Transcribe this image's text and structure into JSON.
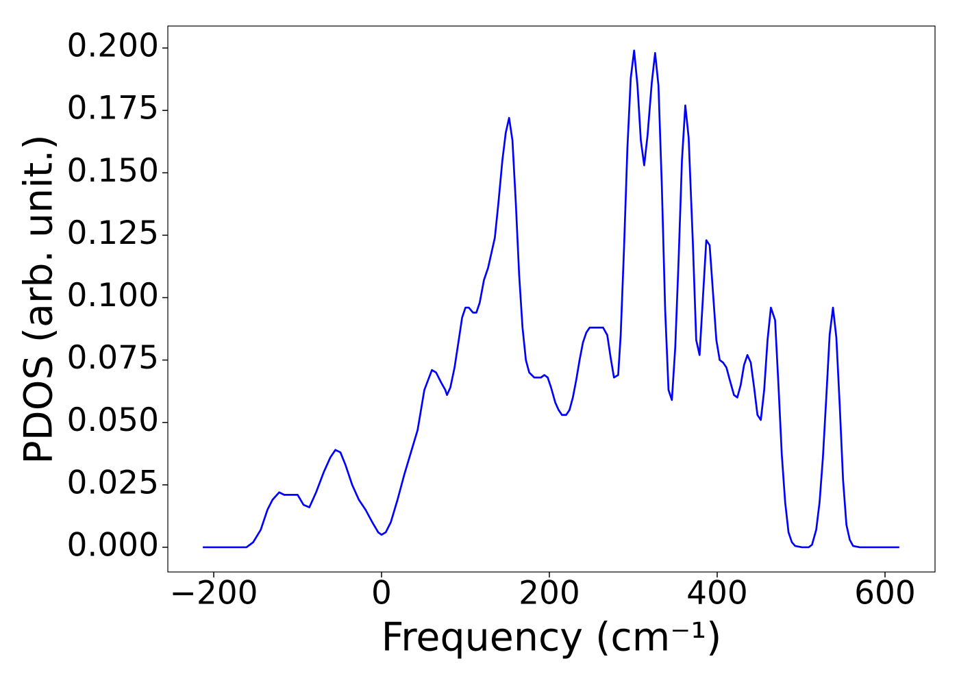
{
  "chart_data": {
    "type": "line",
    "xlabel": "Frequency (cm⁻¹)",
    "ylabel": "PDOS (arb. unit.)",
    "xlim": [
      -254.7,
      659.6
    ],
    "ylim": [
      -0.0099,
      0.2088
    ],
    "xticks": [
      {
        "value": -200,
        "label": "−200"
      },
      0,
      200,
      400,
      600
    ],
    "yticks": [
      {
        "value": 0,
        "label": "0.000"
      },
      {
        "value": 0.025,
        "label": "0.025"
      },
      {
        "value": 0.05,
        "label": "0.050"
      },
      {
        "value": 0.075,
        "label": "0.075"
      },
      {
        "value": 0.1,
        "label": "0.100"
      },
      {
        "value": 0.125,
        "label": "0.125"
      },
      {
        "value": 0.15,
        "label": "0.150"
      },
      {
        "value": 0.175,
        "label": "0.175"
      },
      {
        "value": 0.2,
        "label": "0.200"
      }
    ],
    "x": [
      -213,
      -161,
      -153,
      -144,
      -136,
      -130,
      -122,
      -116,
      -108,
      -100,
      -93,
      -86,
      -78,
      -69,
      -61,
      -55,
      -49,
      -43,
      -35,
      -27,
      -19,
      -11,
      -4,
      0,
      5,
      11,
      19,
      27,
      35,
      43,
      51,
      60,
      65,
      71,
      76,
      78,
      82,
      87,
      92,
      96,
      100,
      104,
      109,
      113,
      117,
      122,
      127,
      131,
      135,
      139,
      144,
      148,
      152,
      156,
      160,
      164,
      168,
      172,
      176,
      182,
      190,
      194,
      198,
      202,
      207,
      211,
      215,
      220,
      224,
      228,
      232,
      236,
      240,
      244,
      248,
      254,
      258,
      262,
      264,
      269,
      273,
      277,
      282,
      285,
      289,
      293,
      297,
      301,
      305,
      309,
      313,
      317,
      322,
      326,
      330,
      334,
      338,
      342,
      346,
      350,
      354,
      358,
      362,
      366,
      371,
      375,
      379,
      383,
      387,
      391,
      395,
      399,
      403,
      407,
      411,
      415,
      420,
      424,
      428,
      432,
      436,
      440,
      444,
      448,
      452,
      456,
      460,
      464,
      469,
      473,
      477,
      481,
      485,
      489,
      493,
      501,
      509,
      513,
      518,
      522,
      526,
      530,
      534,
      538,
      542,
      546,
      550,
      554,
      558,
      562,
      570,
      617
    ],
    "series": [
      {
        "color": "#0000ff",
        "values": [
          0,
          0,
          0.002,
          0.007,
          0.015,
          0.019,
          0.022,
          0.021,
          0.021,
          0.021,
          0.017,
          0.016,
          0.022,
          0.03,
          0.036,
          0.039,
          0.038,
          0.033,
          0.025,
          0.019,
          0.015,
          0.01,
          0.006,
          0.005,
          0.006,
          0.01,
          0.019,
          0.029,
          0.038,
          0.047,
          0.063,
          0.071,
          0.07,
          0.066,
          0.063,
          0.061,
          0.064,
          0.072,
          0.083,
          0.092,
          0.096,
          0.096,
          0.094,
          0.094,
          0.098,
          0.107,
          0.112,
          0.118,
          0.124,
          0.137,
          0.155,
          0.166,
          0.172,
          0.163,
          0.138,
          0.109,
          0.088,
          0.075,
          0.07,
          0.068,
          0.068,
          0.069,
          0.068,
          0.064,
          0.058,
          0.055,
          0.053,
          0.053,
          0.055,
          0.06,
          0.067,
          0.075,
          0.082,
          0.086,
          0.088,
          0.088,
          0.088,
          0.088,
          0.088,
          0.085,
          0.076,
          0.068,
          0.069,
          0.085,
          0.12,
          0.16,
          0.188,
          0.199,
          0.185,
          0.163,
          0.153,
          0.165,
          0.186,
          0.198,
          0.185,
          0.145,
          0.095,
          0.063,
          0.059,
          0.08,
          0.115,
          0.155,
          0.177,
          0.164,
          0.122,
          0.083,
          0.077,
          0.1,
          0.123,
          0.121,
          0.102,
          0.083,
          0.075,
          0.074,
          0.072,
          0.067,
          0.061,
          0.06,
          0.065,
          0.073,
          0.077,
          0.074,
          0.064,
          0.053,
          0.051,
          0.063,
          0.083,
          0.096,
          0.091,
          0.065,
          0.037,
          0.018,
          0.006,
          0.002,
          0.0005,
          0,
          0,
          0.001,
          0.007,
          0.018,
          0.036,
          0.06,
          0.085,
          0.096,
          0.084,
          0.057,
          0.027,
          0.009,
          0.003,
          0.0005,
          0,
          0
        ]
      }
    ]
  }
}
